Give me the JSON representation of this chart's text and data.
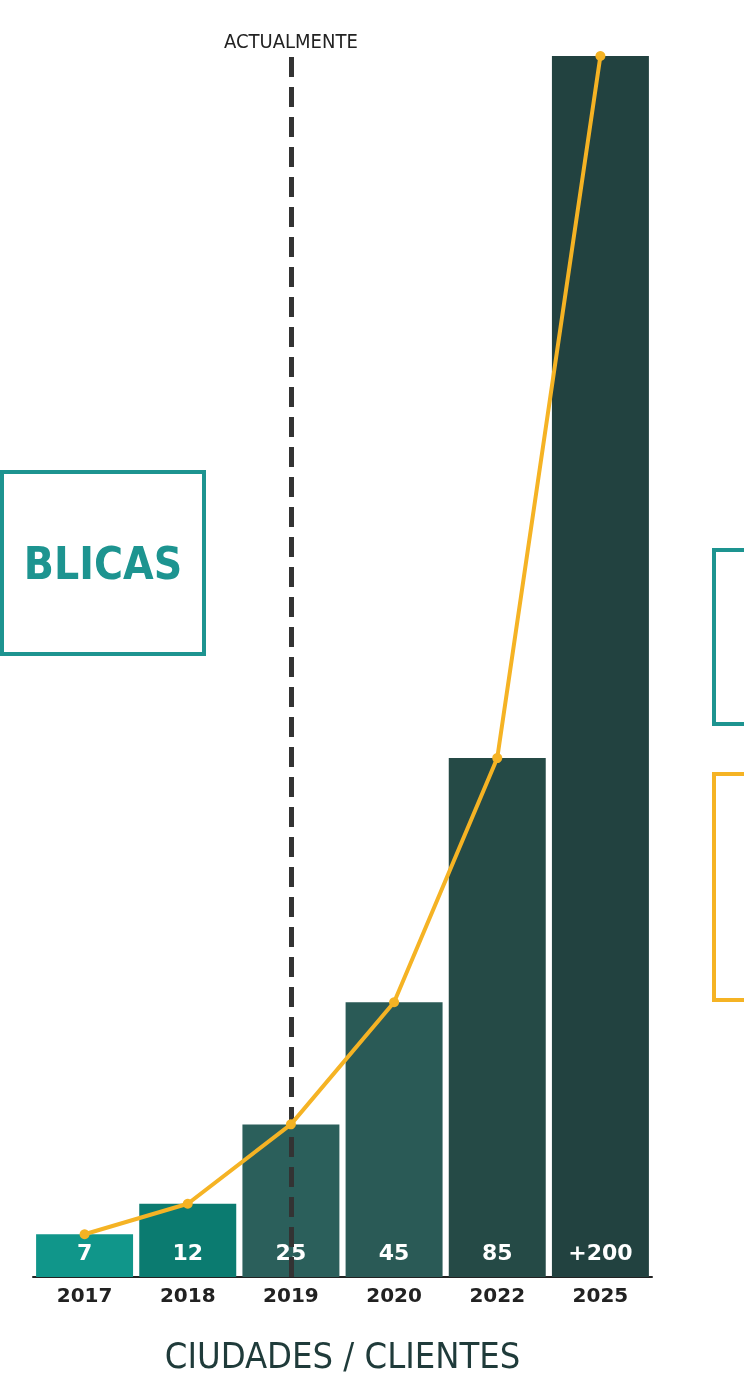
{
  "chart_data": {
    "type": "bar",
    "xlabel": "CIUDADES / CLIENTES",
    "categories": [
      "2017",
      "2018",
      "2019",
      "2020",
      "2022",
      "2025"
    ],
    "series": [
      {
        "values": [
          7,
          12,
          25,
          45,
          85,
          200
        ],
        "colors": [
          "#10968a",
          "#0b7b70",
          "#2b5f5b",
          "#2a5a56",
          "#254a46",
          "#224240"
        ],
        "value_labels": [
          "7",
          "12",
          "25",
          "45",
          "85",
          "+200"
        ]
      },
      {
        "type": "line",
        "values": [
          7,
          12,
          25,
          45,
          85,
          200
        ],
        "color": "#f5b324",
        "marker": "circle"
      }
    ],
    "ylim": [
      0,
      200
    ],
    "tick_labels": "x",
    "grid": false,
    "ref_lines": [
      {
        "axis": "x",
        "value": "2019",
        "label": "ACTUALMENTE",
        "color": "#333333",
        "line_style": "dashed"
      }
    ],
    "annotations": [
      "BLICAS"
    ]
  }
}
